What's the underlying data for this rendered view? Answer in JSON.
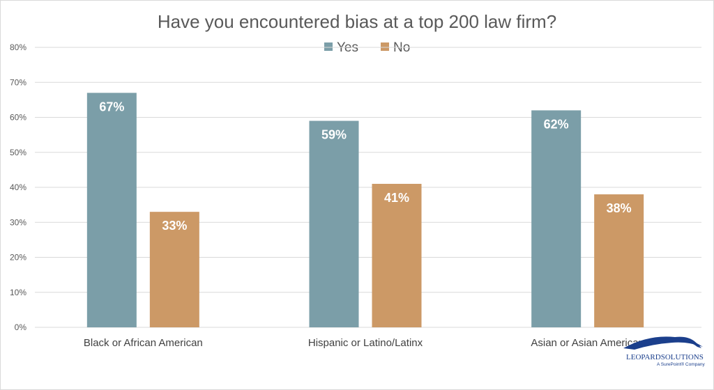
{
  "chart_data": {
    "type": "bar",
    "title": "Have you encountered bias at a top 200 law firm?",
    "categories": [
      "Black or African American",
      "Hispanic or Latino/Latinx",
      "Asian or Asian American"
    ],
    "series": [
      {
        "name": "Yes",
        "values": [
          67,
          59,
          62
        ],
        "labels": [
          "67%",
          "59%",
          "62%"
        ],
        "color": "#7b9ea8"
      },
      {
        "name": "No",
        "values": [
          33,
          41,
          38
        ],
        "labels": [
          "33%",
          "41%",
          "38%"
        ],
        "color": "#cc9966"
      }
    ],
    "ylim": [
      0,
      80
    ],
    "yticks": [
      0,
      10,
      20,
      30,
      40,
      50,
      60,
      70,
      80
    ],
    "ytick_labels": [
      "0%",
      "10%",
      "20%",
      "30%",
      "40%",
      "50%",
      "60%",
      "70%",
      "80%"
    ],
    "grid": true,
    "legend": "top-center",
    "gridline_color": "#d9d9d9"
  },
  "logo": {
    "name": "LEOPARDSOLUTIONS",
    "tagline": "A SurePoint® Company",
    "color": "#1b3f8c"
  }
}
